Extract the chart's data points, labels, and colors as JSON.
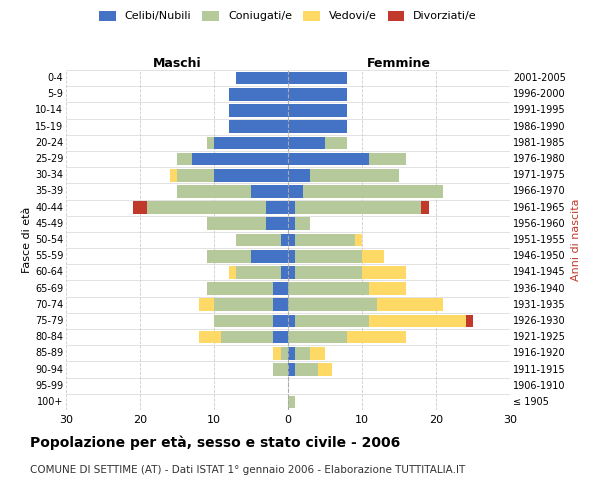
{
  "age_groups": [
    "100+",
    "95-99",
    "90-94",
    "85-89",
    "80-84",
    "75-79",
    "70-74",
    "65-69",
    "60-64",
    "55-59",
    "50-54",
    "45-49",
    "40-44",
    "35-39",
    "30-34",
    "25-29",
    "20-24",
    "15-19",
    "10-14",
    "5-9",
    "0-4"
  ],
  "birth_years": [
    "≤ 1905",
    "1906-1910",
    "1911-1915",
    "1916-1920",
    "1921-1925",
    "1926-1930",
    "1931-1935",
    "1936-1940",
    "1941-1945",
    "1946-1950",
    "1951-1955",
    "1956-1960",
    "1961-1965",
    "1966-1970",
    "1971-1975",
    "1976-1980",
    "1981-1985",
    "1986-1990",
    "1991-1995",
    "1996-2000",
    "2001-2005"
  ],
  "males": {
    "celibe": [
      0,
      0,
      0,
      0,
      2,
      2,
      2,
      2,
      1,
      5,
      1,
      3,
      3,
      5,
      10,
      13,
      10,
      8,
      8,
      8,
      7
    ],
    "coniugato": [
      0,
      0,
      2,
      1,
      7,
      8,
      8,
      9,
      6,
      6,
      6,
      8,
      16,
      10,
      5,
      2,
      1,
      0,
      0,
      0,
      0
    ],
    "vedovo": [
      0,
      0,
      0,
      1,
      3,
      0,
      2,
      0,
      1,
      0,
      0,
      0,
      0,
      0,
      1,
      0,
      0,
      0,
      0,
      0,
      0
    ],
    "divorziato": [
      0,
      0,
      0,
      0,
      0,
      0,
      0,
      0,
      0,
      0,
      0,
      0,
      2,
      0,
      0,
      0,
      0,
      0,
      0,
      0,
      0
    ]
  },
  "females": {
    "nubile": [
      0,
      0,
      1,
      1,
      0,
      1,
      0,
      0,
      1,
      1,
      1,
      1,
      1,
      2,
      3,
      11,
      5,
      8,
      8,
      8,
      8
    ],
    "coniugata": [
      1,
      0,
      3,
      2,
      8,
      10,
      12,
      11,
      9,
      9,
      8,
      2,
      17,
      19,
      12,
      5,
      3,
      0,
      0,
      0,
      0
    ],
    "vedova": [
      0,
      0,
      2,
      2,
      8,
      13,
      9,
      5,
      6,
      3,
      1,
      0,
      0,
      0,
      0,
      0,
      0,
      0,
      0,
      0,
      0
    ],
    "divorziata": [
      0,
      0,
      0,
      0,
      0,
      1,
      0,
      0,
      0,
      0,
      0,
      0,
      1,
      0,
      0,
      0,
      0,
      0,
      0,
      0,
      0
    ]
  },
  "colors": {
    "celibe": "#4472c4",
    "coniugato": "#b5c99a",
    "vedovo": "#ffd966",
    "divorziato": "#c0392b"
  },
  "title": "Popolazione per età, sesso e stato civile - 2006",
  "subtitle": "COMUNE DI SETTIME (AT) - Dati ISTAT 1° gennaio 2006 - Elaborazione TUTTITALIA.IT",
  "label_maschi": "Maschi",
  "label_femmine": "Femmine",
  "ylabel_left": "Fasce di età",
  "ylabel_right": "Anni di nascita",
  "xlim": 30,
  "background_color": "#ffffff",
  "grid_color": "#cccccc",
  "legend_labels": [
    "Celibi/Nubili",
    "Coniugati/e",
    "Vedovi/e",
    "Divorziati/e"
  ]
}
